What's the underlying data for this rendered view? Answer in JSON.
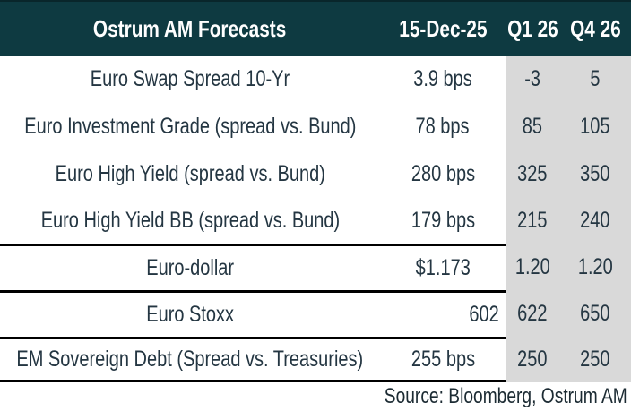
{
  "table": {
    "header": {
      "title": "Ostrum AM Forecasts",
      "col_date": "15-Dec-25",
      "col_q1": "Q1 26",
      "col_q4": "Q4 26"
    },
    "rows": [
      {
        "label": "Euro Swap Spread 10-Yr",
        "value": "3.9 bps",
        "q1": "-3",
        "q4": "5",
        "border_top": false,
        "border_bottom": false,
        "value_align": "center"
      },
      {
        "label": "Euro Investment Grade (spread vs. Bund)",
        "value": "78 bps",
        "q1": "85",
        "q4": "105",
        "border_top": false,
        "border_bottom": false,
        "value_align": "center"
      },
      {
        "label": "Euro High Yield (spread vs. Bund)",
        "value": "280 bps",
        "q1": "325",
        "q4": "350",
        "border_top": false,
        "border_bottom": false,
        "value_align": "center"
      },
      {
        "label": "Euro High Yield BB (spread vs. Bund)",
        "value": "179 bps",
        "q1": "215",
        "q4": "240",
        "border_top": false,
        "border_bottom": false,
        "value_align": "center"
      },
      {
        "label": "Euro-dollar",
        "value": "$1.173",
        "q1": "1.20",
        "q4": "1.20",
        "border_top": true,
        "border_bottom": false,
        "value_align": "center"
      },
      {
        "label": "Euro Stoxx",
        "value": "602",
        "q1": "622",
        "q4": "650",
        "border_top": true,
        "border_bottom": false,
        "value_align": "right"
      },
      {
        "label": "EM Sovereign Debt  (Spread vs. Treasuries)",
        "value": "255 bps",
        "q1": "250",
        "q4": "250",
        "border_top": true,
        "border_bottom": true,
        "value_align": "center"
      }
    ],
    "source": "Source: Bloomberg, Ostrum AM"
  },
  "chart_data": {
    "type": "table",
    "title": "Ostrum AM Forecasts",
    "columns": [
      "Ostrum AM Forecasts",
      "15-Dec-25",
      "Q1 26",
      "Q4 26"
    ],
    "rows": [
      [
        "Euro Swap Spread 10-Yr",
        "3.9 bps",
        -3,
        5
      ],
      [
        "Euro Investment Grade (spread vs. Bund)",
        "78 bps",
        85,
        105
      ],
      [
        "Euro High Yield (spread vs. Bund)",
        "280 bps",
        325,
        350
      ],
      [
        "Euro High Yield BB (spread vs. Bund)",
        "179 bps",
        215,
        240
      ],
      [
        "Euro-dollar",
        "$1.173",
        1.2,
        1.2
      ],
      [
        "Euro Stoxx",
        602,
        622,
        650
      ],
      [
        "EM Sovereign Debt (Spread vs. Treasuries)",
        "255 bps",
        250,
        250
      ]
    ],
    "source_note": "Source: Bloomberg, Ostrum AM"
  },
  "colors": {
    "header_bg": "#0e3a41",
    "header_text": "#ffffff",
    "forecast_band_bg": "#d9d9d9",
    "body_text": "#243642",
    "section_line": "#000000",
    "background": "#ffffff"
  }
}
